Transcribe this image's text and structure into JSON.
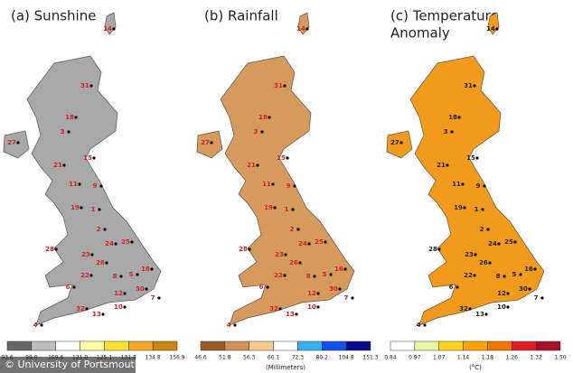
{
  "watermark": "© University of Portsmouth",
  "stations": [
    "31",
    "18",
    "3",
    "27",
    "21",
    "15",
    "11",
    "9",
    "19",
    "1",
    "2",
    "24",
    "25",
    "28",
    "23",
    "26",
    "22",
    "8",
    "5",
    "16",
    "6",
    "12",
    "30",
    "32",
    "13",
    "10",
    "7",
    "4",
    "14"
  ],
  "panels": [
    {
      "title_lines": [
        "(a) Sunshine"
      ],
      "map_fill": "#a8a8a8",
      "label_color": "#d62020",
      "legend": {
        "labels": [
          "93.6",
          "99.0",
          "109.6",
          "121.0",
          "125.1",
          "131.8",
          "134.8",
          "156.9"
        ],
        "colors": [
          "#666666",
          "#bdbdbd",
          "#ffffff",
          "#ffffa0",
          "#ffe033",
          "#f7a823",
          "#c8860a"
        ]
      }
    },
    {
      "title_lines": [
        "(b) Rainfall"
      ],
      "map_fill": "#d59a5c",
      "label_color": "#d62020",
      "legend": {
        "labels": [
          "46.6",
          "51.8",
          "56.3",
          "66.1",
          "72.3",
          "80.2",
          "104.8",
          "151.3"
        ],
        "colors": [
          "#9a5a2a",
          "#cf8f55",
          "#f6c98d",
          "#ffffff",
          "#35b0f0",
          "#1050f0",
          "#0a0a8c"
        ]
      },
      "unit": "(Millimeters)"
    },
    {
      "title_lines": [
        "(c) Temperature",
        "Anomaly"
      ],
      "map_fill": "#f29a1c",
      "label_color": "#222222",
      "legend": {
        "labels": [
          "0.84",
          "0.97",
          "1.07",
          "1.14",
          "1.18",
          "1.26",
          "1.32",
          "1.50"
        ],
        "colors": [
          "#ffffff",
          "#eaf5a8",
          "#ffd21a",
          "#ffa500",
          "#f07800",
          "#e02020",
          "#a8102a"
        ]
      },
      "unit": "(°C)"
    }
  ]
}
